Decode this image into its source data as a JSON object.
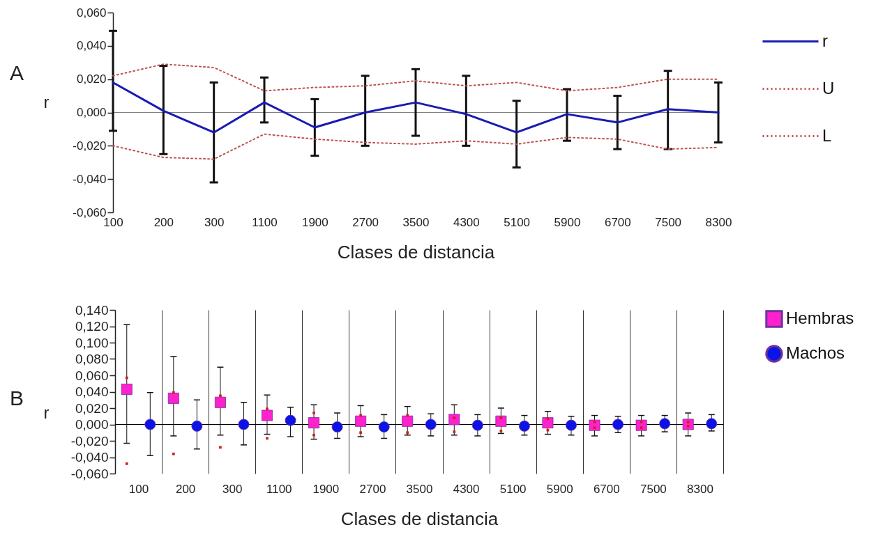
{
  "chart_data": [
    {
      "type": "line",
      "xlabel": "Clases de distancia",
      "ylabel": "r",
      "annotations": [
        "A"
      ],
      "categories": [
        "100",
        "200",
        "300",
        "1100",
        "1900",
        "2700",
        "3500",
        "4300",
        "5100",
        "5900",
        "6700",
        "7500",
        "8300"
      ],
      "series": [
        {
          "name": "r",
          "color": "#1a1ab4",
          "line_style": "solid",
          "values": [
            0.018,
            0.001,
            -0.012,
            0.006,
            -0.009,
            0.0,
            0.006,
            -0.001,
            -0.012,
            -0.001,
            -0.006,
            0.002,
            0.0
          ],
          "errors": [
            [
              -0.011,
              0.049
            ],
            [
              -0.025,
              0.028
            ],
            [
              -0.042,
              0.018
            ],
            [
              -0.006,
              0.021
            ],
            [
              -0.026,
              0.008
            ],
            [
              -0.02,
              0.022
            ],
            [
              -0.014,
              0.026
            ],
            [
              -0.02,
              0.022
            ],
            [
              -0.033,
              0.007
            ],
            [
              -0.017,
              0.014
            ],
            [
              -0.022,
              0.01
            ],
            [
              -0.022,
              0.025
            ],
            [
              -0.018,
              0.018
            ]
          ]
        },
        {
          "name": "U",
          "color": "#c0504d",
          "line_style": "dotted",
          "values": [
            0.022,
            0.029,
            0.027,
            0.013,
            0.015,
            0.016,
            0.019,
            0.016,
            0.018,
            0.013,
            0.015,
            0.02,
            0.02
          ]
        },
        {
          "name": "L",
          "color": "#c0504d",
          "line_style": "dotted",
          "values": [
            -0.02,
            -0.027,
            -0.028,
            -0.013,
            -0.016,
            -0.018,
            -0.019,
            -0.017,
            -0.019,
            -0.015,
            -0.016,
            -0.022,
            -0.021
          ]
        }
      ],
      "ylim": [
        -0.06,
        0.06
      ],
      "yticks": [
        {
          "value": -0.06,
          "label": "-0,060"
        },
        {
          "value": -0.04,
          "label": "-0,040"
        },
        {
          "value": -0.02,
          "label": "-0,020"
        },
        {
          "value": 0,
          "label": "0,000"
        },
        {
          "value": 0.02,
          "label": "0,020"
        },
        {
          "value": 0.04,
          "label": "0,040"
        },
        {
          "value": 0.06,
          "label": "0,060"
        }
      ],
      "ref_lines": [
        {
          "axis": "y",
          "value": 0,
          "color": "#808080"
        }
      ],
      "legend": "right"
    },
    {
      "type": "scatter",
      "xlabel": "Clases de distancia",
      "ylabel": "r",
      "annotations": [
        "B"
      ],
      "categories": [
        "100",
        "200",
        "300",
        "1100",
        "1900",
        "2700",
        "3500",
        "4300",
        "5100",
        "5900",
        "6700",
        "7500",
        "8300"
      ],
      "series": [
        {
          "name": "Hembras",
          "color": "#ff22cc",
          "marker": "square",
          "values": [
            0.043,
            0.032,
            0.027,
            0.011,
            0.002,
            0.004,
            0.004,
            0.006,
            0.004,
            0.002,
            -0.001,
            -0.001,
            0.0
          ],
          "errors": [
            [
              -0.023,
              0.122
            ],
            [
              -0.014,
              0.083
            ],
            [
              -0.013,
              0.07
            ],
            [
              -0.012,
              0.036
            ],
            [
              -0.018,
              0.024
            ],
            [
              -0.015,
              0.023
            ],
            [
              -0.013,
              0.022
            ],
            [
              -0.013,
              0.024
            ],
            [
              -0.011,
              0.02
            ],
            [
              -0.012,
              0.016
            ],
            [
              -0.014,
              0.011
            ],
            [
              -0.014,
              0.011
            ],
            [
              -0.014,
              0.014
            ]
          ]
        },
        {
          "color": "#d02020",
          "marker": "square",
          "values": [
            0.057,
            0.039,
            0.035,
            0.019,
            0.014,
            0.011,
            0.011,
            0.008,
            0.008,
            0.007,
            0.003,
            0.003,
            0.003
          ]
        },
        {
          "color": "#d02020",
          "marker": "square",
          "values": [
            -0.048,
            -0.036,
            -0.028,
            -0.017,
            -0.013,
            -0.01,
            -0.01,
            -0.009,
            -0.008,
            -0.007,
            -0.004,
            -0.004,
            -0.002
          ]
        },
        {
          "name": "Machos",
          "color": "#0a14e6",
          "marker": "circle",
          "values": [
            0.0,
            -0.002,
            0.0,
            0.005,
            -0.003,
            -0.003,
            0.0,
            -0.001,
            -0.002,
            -0.001,
            0.0,
            0.001,
            0.001
          ],
          "errors": [
            [
              -0.038,
              0.039
            ],
            [
              -0.03,
              0.03
            ],
            [
              -0.025,
              0.027
            ],
            [
              -0.015,
              0.021
            ],
            [
              -0.017,
              0.014
            ],
            [
              -0.017,
              0.012
            ],
            [
              -0.014,
              0.013
            ],
            [
              -0.014,
              0.012
            ],
            [
              -0.013,
              0.011
            ],
            [
              -0.013,
              0.01
            ],
            [
              -0.01,
              0.01
            ],
            [
              -0.009,
              0.011
            ],
            [
              -0.008,
              0.012
            ]
          ]
        }
      ],
      "ylim": [
        -0.06,
        0.14
      ],
      "yticks": [
        {
          "value": -0.06,
          "label": "-0,060"
        },
        {
          "value": -0.04,
          "label": "-0,040"
        },
        {
          "value": -0.02,
          "label": "-0,020"
        },
        {
          "value": 0,
          "label": "0,000"
        },
        {
          "value": 0.02,
          "label": "0,020"
        },
        {
          "value": 0.04,
          "label": "0,040"
        },
        {
          "value": 0.06,
          "label": "0,060"
        },
        {
          "value": 0.08,
          "label": "0,080"
        },
        {
          "value": 0.1,
          "label": "0,100"
        },
        {
          "value": 0.12,
          "label": "0,120"
        },
        {
          "value": 0.14,
          "label": "0,140"
        }
      ],
      "ref_lines": [
        {
          "axis": "y",
          "value": 0,
          "color": "#000000"
        }
      ],
      "grid": "x",
      "legend": "right"
    }
  ]
}
